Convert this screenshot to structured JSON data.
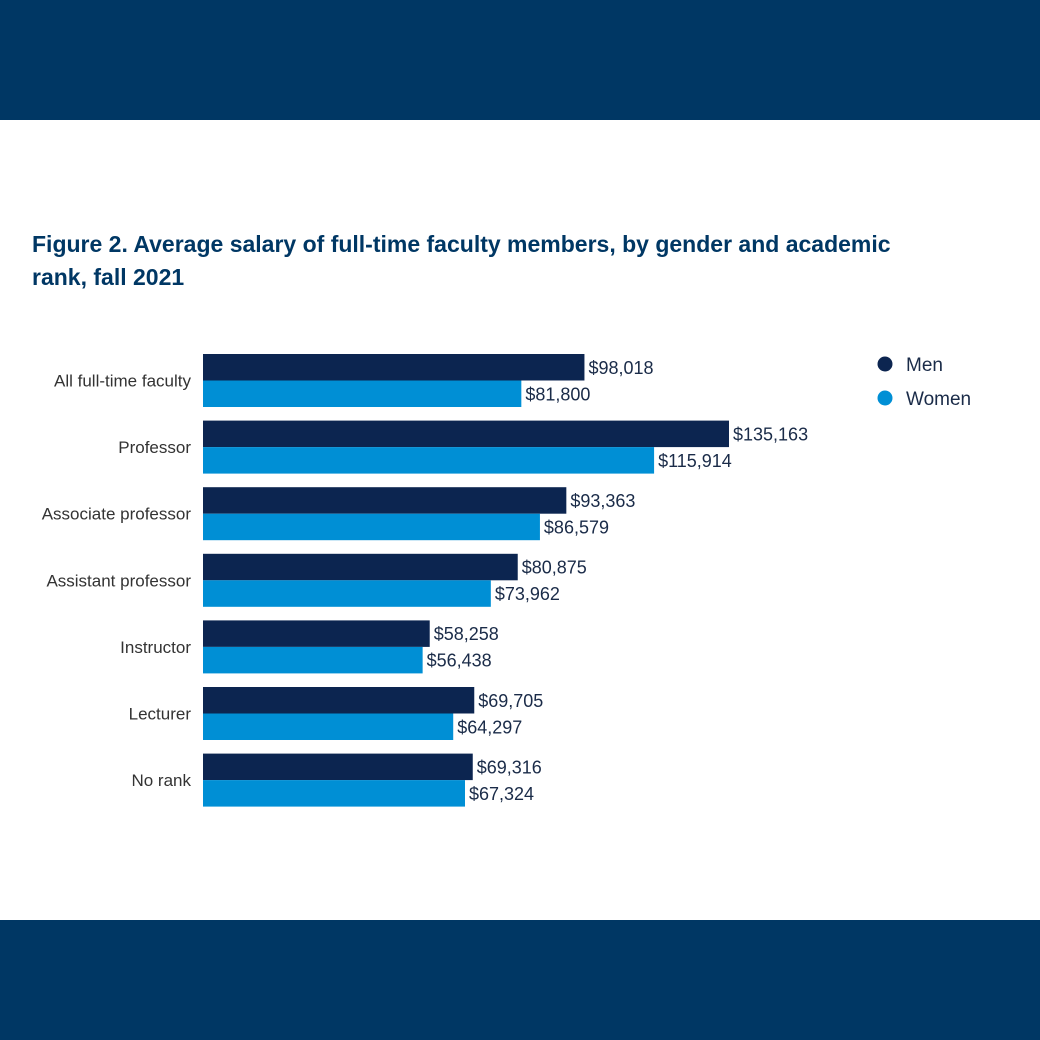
{
  "title": "Figure 2. Average salary of full-time faculty members, by gender and academic rank, fall 2021",
  "colors": {
    "band": "#003764",
    "men": "#0c2550",
    "women": "#008fd5"
  },
  "chart_data": {
    "type": "bar",
    "orientation": "horizontal",
    "categories": [
      "All full-time faculty",
      "Professor",
      "Associate professor",
      "Assistant professor",
      "Instructor",
      "Lecturer",
      "No rank"
    ],
    "series": [
      {
        "name": "Men",
        "color": "#0c2550",
        "values": [
          98018,
          135163,
          93363,
          80875,
          58258,
          69705,
          69316
        ],
        "labels": [
          "$98,018",
          "$135,163",
          "$93,363",
          "$80,875",
          "$58,258",
          "$69,705",
          "$69,316"
        ]
      },
      {
        "name": "Women",
        "color": "#008fd5",
        "values": [
          81800,
          115914,
          86579,
          73962,
          56438,
          64297,
          67324
        ],
        "labels": [
          "$81,800",
          "$115,914",
          "$86,579",
          "$73,962",
          "$56,438",
          "$64,297",
          "$67,324"
        ]
      }
    ],
    "xlim": [
      0,
      140000
    ],
    "grid": false,
    "legend": "top-right"
  }
}
